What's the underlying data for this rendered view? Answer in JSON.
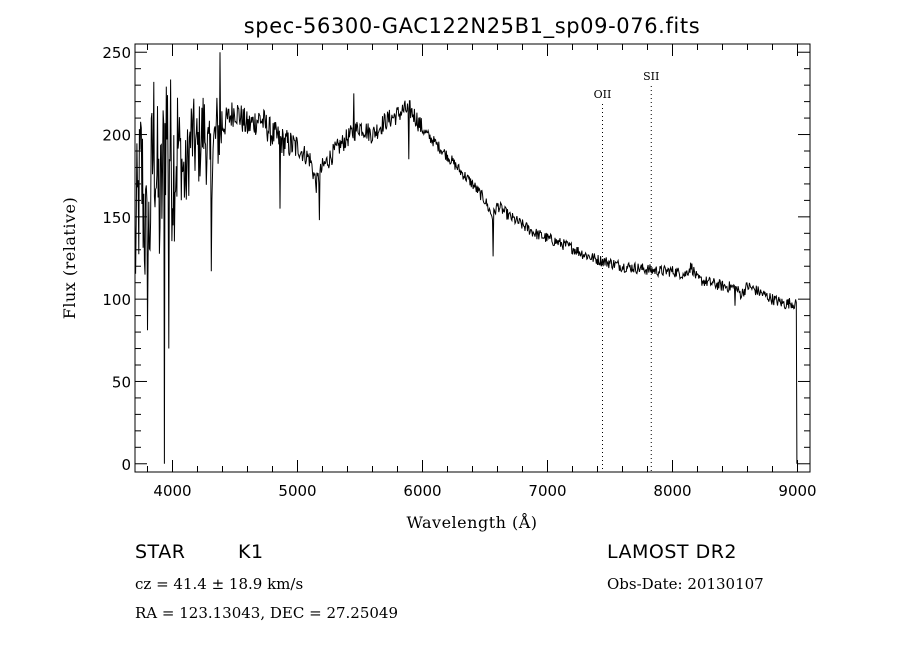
{
  "chart_data": {
    "type": "line",
    "title": "spec-56300-GAC122N25B1_sp09-076.fits",
    "xlabel": "Wavelength (Å)",
    "ylabel": "Flux (relative)",
    "xlim": [
      3700,
      9100
    ],
    "ylim": [
      -5,
      255
    ],
    "xticks": [
      4000,
      5000,
      6000,
      7000,
      8000,
      9000
    ],
    "yticks": [
      0,
      50,
      100,
      150,
      200,
      250
    ],
    "grid": false,
    "series": [
      {
        "x": [
          3700,
          3750,
          3800,
          3850,
          3900,
          3950,
          4000,
          4050,
          4100,
          4150,
          4200,
          4250,
          4300,
          4350,
          4400,
          4450,
          4500,
          4600,
          4700,
          4800,
          4900,
          5000,
          5100,
          5150,
          5200,
          5300,
          5400,
          5500,
          5600,
          5700,
          5800,
          5850,
          5900,
          5950,
          6000,
          6100,
          6200,
          6300,
          6400,
          6500,
          6560,
          6600,
          6700,
          6800,
          6900,
          7000,
          7100,
          7200,
          7300,
          7400,
          7500,
          7600,
          7700,
          7800,
          7900,
          8000,
          8100,
          8150,
          8200,
          8300,
          8400,
          8500,
          8550,
          8600,
          8700,
          8800,
          8900,
          8950,
          9000
        ],
        "y": [
          130,
          180,
          120,
          200,
          150,
          210,
          180,
          195,
          170,
          200,
          190,
          205,
          180,
          200,
          205,
          210,
          215,
          205,
          210,
          200,
          195,
          192,
          185,
          170,
          180,
          190,
          198,
          205,
          200,
          208,
          212,
          215,
          215,
          210,
          203,
          195,
          187,
          178,
          170,
          160,
          150,
          157,
          150,
          145,
          140,
          137,
          134,
          131,
          127,
          124,
          122,
          120,
          119,
          118,
          117,
          117,
          115,
          120,
          112,
          110,
          108,
          107,
          103,
          108,
          104,
          100,
          97,
          98,
          96
        ]
      }
    ],
    "features": [
      {
        "x": 3935,
        "y": 0
      },
      {
        "x": 3970,
        "y": 70
      },
      {
        "x": 4310,
        "y": 117
      },
      {
        "x": 4380,
        "y": 250
      },
      {
        "x": 4860,
        "y": 155
      },
      {
        "x": 5175,
        "y": 148
      },
      {
        "x": 5450,
        "y": 225
      },
      {
        "x": 5890,
        "y": 185
      },
      {
        "x": 6563,
        "y": 126
      },
      {
        "x": 8500,
        "y": 96
      }
    ],
    "lines": [
      {
        "label": "OII",
        "x": 7440
      },
      {
        "label": "SII",
        "x": 7830
      }
    ]
  },
  "info": {
    "class_label": "STAR",
    "subclass": "K1",
    "survey": "LAMOST DR2",
    "redshift": "cz = 41.4 ± 18.9 km/s",
    "obs_date": "Obs-Date: 20130107",
    "coords": "RA = 123.13043, DEC =  27.25049"
  }
}
